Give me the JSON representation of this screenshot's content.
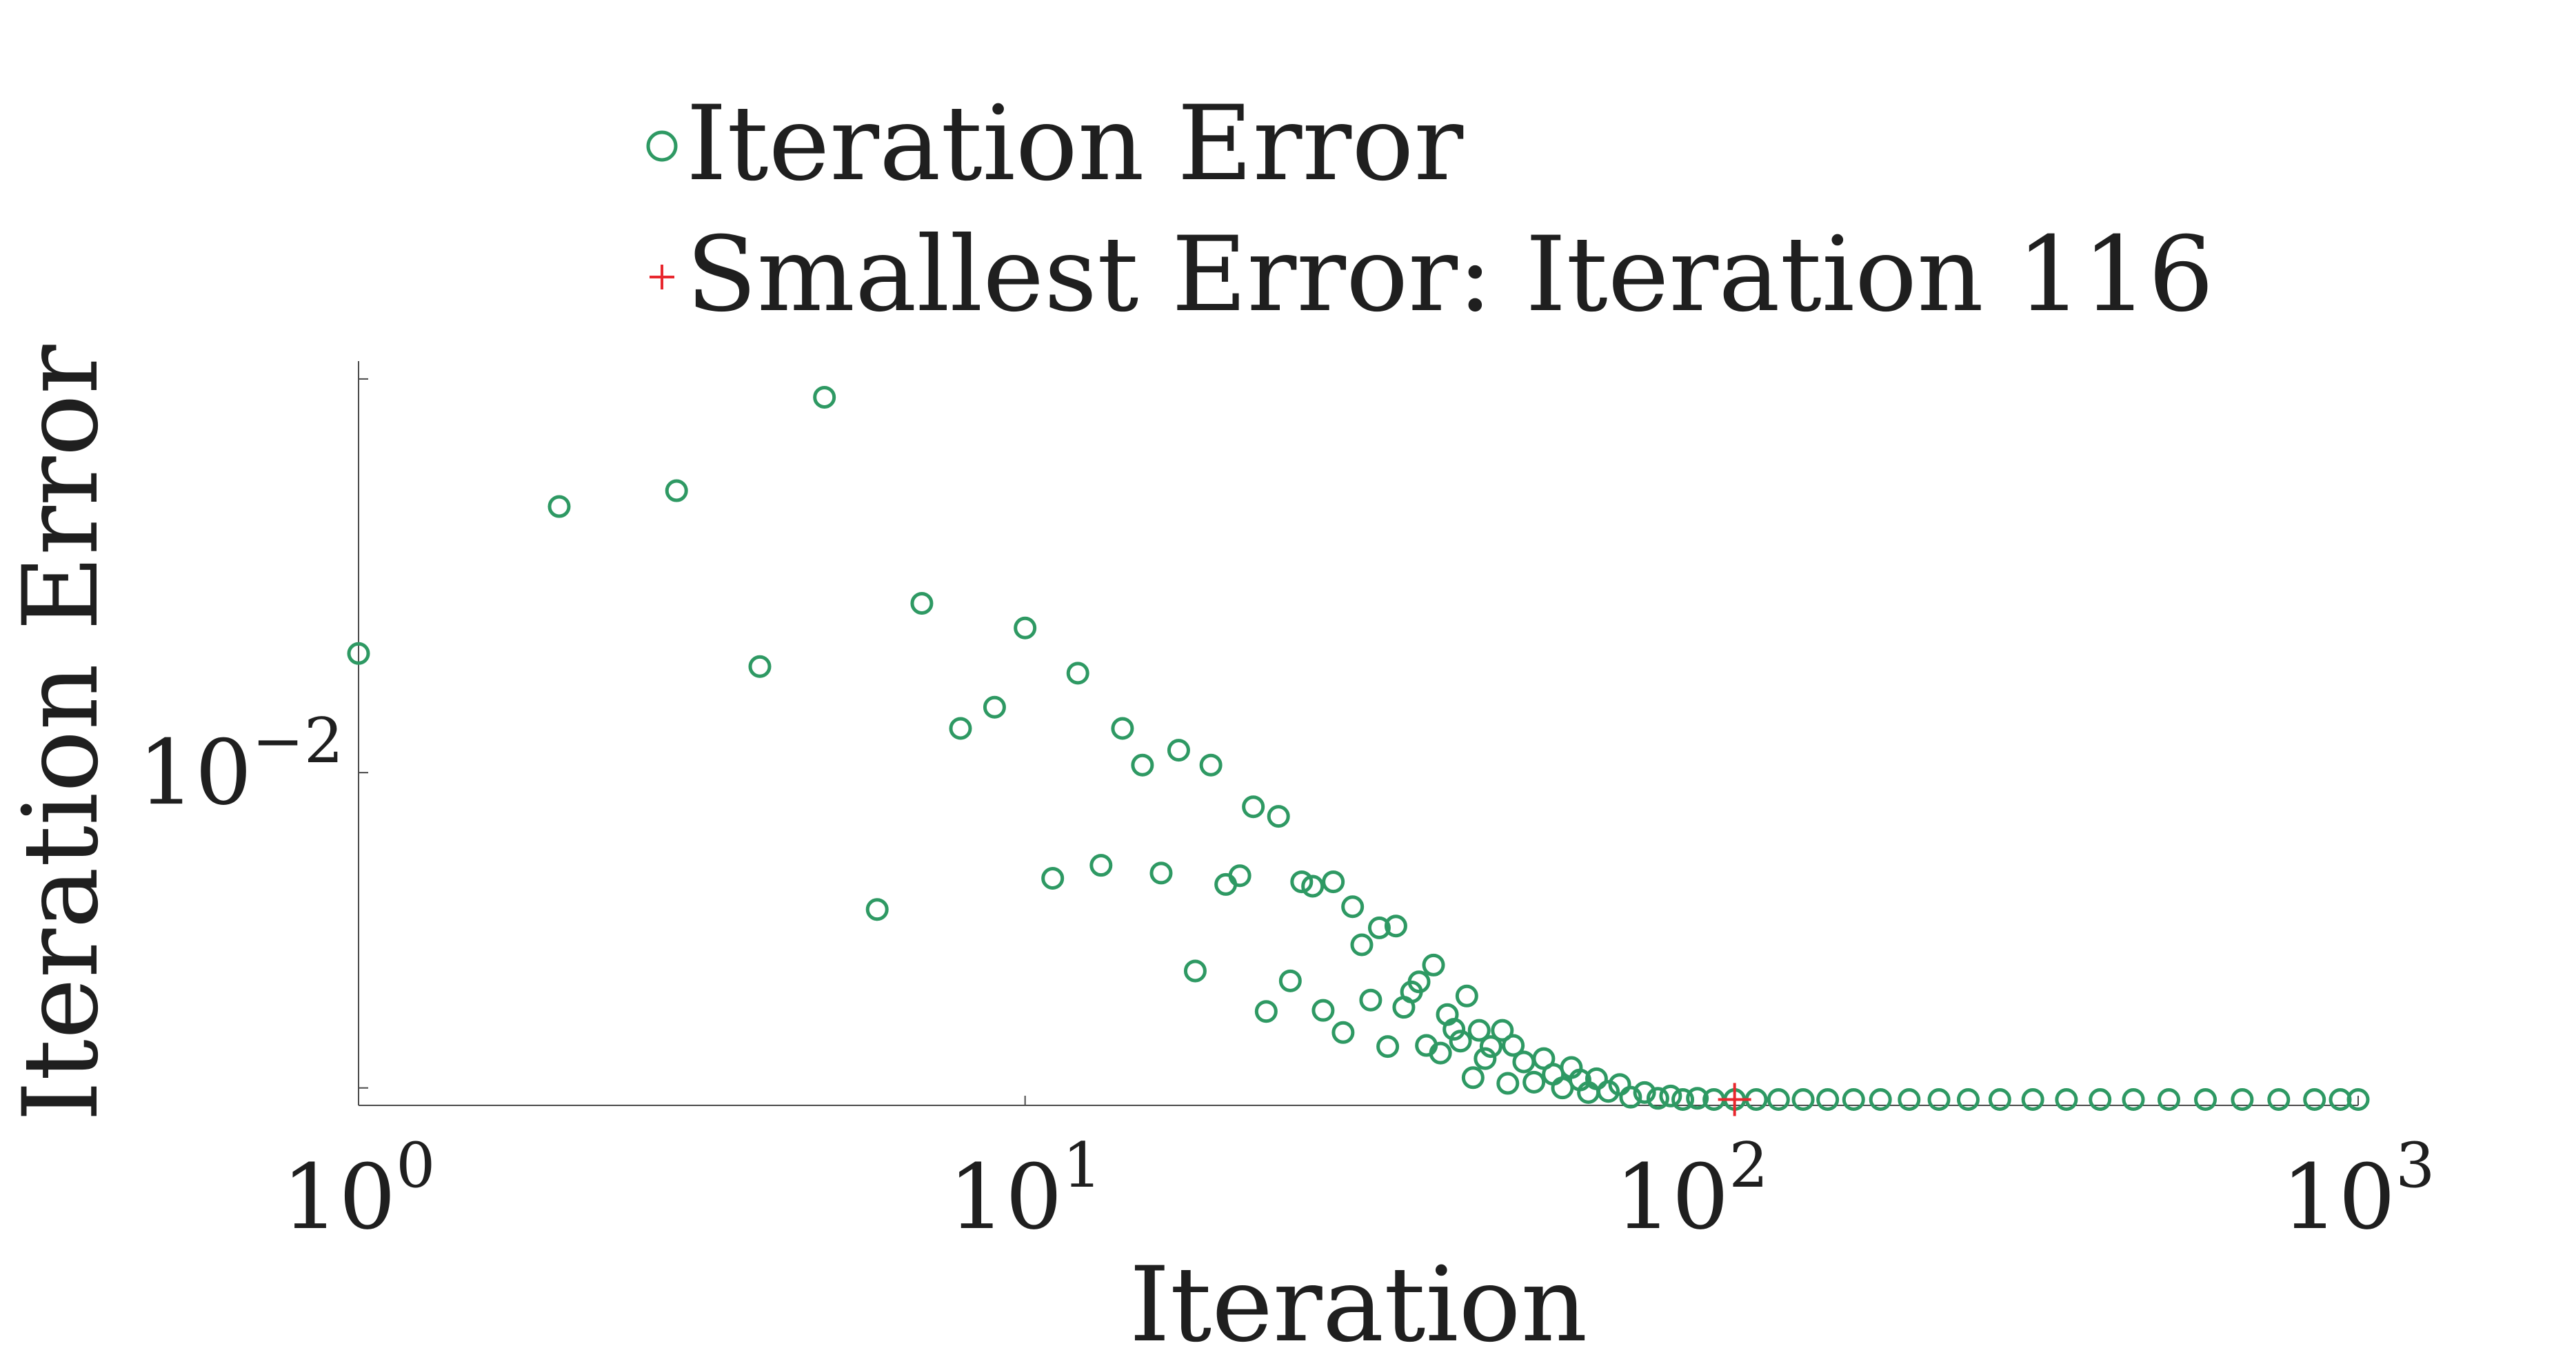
{
  "chart_data": {
    "type": "scatter",
    "xlabel": "Iteration",
    "ylabel": "Iteration Error",
    "xscale": "log",
    "yscale": "log",
    "xlim": [
      1,
      1000
    ],
    "ylim": [
      0.00645,
      0.0172
    ],
    "grid": false,
    "legend_position": "top",
    "x_ticks": [
      {
        "value": 1,
        "base": "10",
        "exp": "0"
      },
      {
        "value": 10,
        "base": "10",
        "exp": "1"
      },
      {
        "value": 100,
        "base": "10",
        "exp": "2"
      },
      {
        "value": 1000,
        "base": "10",
        "exp": "3"
      }
    ],
    "y_ticks": [
      {
        "value": 0.01,
        "base": "10",
        "exp": "−2"
      },
      {
        "value": 0.0168,
        "base": "",
        "exp": ""
      },
      {
        "value": 0.0066,
        "base": "",
        "exp": ""
      }
    ],
    "series": [
      {
        "name": "Iteration Error",
        "marker": "circle",
        "color": "#2e9963",
        "points": [
          [
            1,
            0.0117
          ],
          [
            2,
            0.0142
          ],
          [
            3,
            0.0145
          ],
          [
            4,
            0.0115
          ],
          [
            5,
            0.0164
          ],
          [
            6,
            0.00835
          ],
          [
            7,
            0.0125
          ],
          [
            8,
            0.0106
          ],
          [
            9,
            0.0109
          ],
          [
            10,
            0.0121
          ],
          [
            11,
            0.0087
          ],
          [
            12,
            0.0114
          ],
          [
            13,
            0.00885
          ],
          [
            14,
            0.0106
          ],
          [
            15,
            0.0101
          ],
          [
            16,
            0.00876
          ],
          [
            17,
            0.0103
          ],
          [
            18,
            0.0077
          ],
          [
            19,
            0.0101
          ],
          [
            20,
            0.00863
          ],
          [
            21,
            0.00873
          ],
          [
            22,
            0.00956
          ],
          [
            23,
            0.0073
          ],
          [
            24,
            0.00944
          ],
          [
            25,
            0.0076
          ],
          [
            26,
            0.00866
          ],
          [
            27,
            0.00861
          ],
          [
            28,
            0.00731
          ],
          [
            29,
            0.00866
          ],
          [
            30,
            0.0071
          ],
          [
            31,
            0.00838
          ],
          [
            32,
            0.00797
          ],
          [
            33,
            0.00741
          ],
          [
            34,
            0.00815
          ],
          [
            35,
            0.00697
          ],
          [
            36,
            0.00817
          ],
          [
            37,
            0.00734
          ],
          [
            38,
            0.00749
          ],
          [
            39,
            0.00759
          ],
          [
            40,
            0.00698
          ],
          [
            41,
            0.00776
          ],
          [
            42,
            0.00691
          ],
          [
            43,
            0.00727
          ],
          [
            44,
            0.00713
          ],
          [
            45,
            0.00702
          ],
          [
            46,
            0.00745
          ],
          [
            47,
            0.00669
          ],
          [
            48,
            0.00712
          ],
          [
            49,
            0.00686
          ],
          [
            50,
            0.00697
          ],
          [
            52,
            0.00712
          ],
          [
            53,
            0.00664
          ],
          [
            54,
            0.00698
          ],
          [
            56,
            0.00683
          ],
          [
            58,
            0.00665
          ],
          [
            60,
            0.00686
          ],
          [
            62,
            0.00672
          ],
          [
            64,
            0.0066
          ],
          [
            66,
            0.00678
          ],
          [
            68,
            0.00667
          ],
          [
            70,
            0.00656
          ],
          [
            72,
            0.00668
          ],
          [
            75,
            0.00657
          ],
          [
            78,
            0.00663
          ],
          [
            81,
            0.00652
          ],
          [
            85,
            0.00656
          ],
          [
            89,
            0.00651
          ],
          [
            93,
            0.00653
          ],
          [
            97,
            0.0065
          ],
          [
            102,
            0.00651
          ],
          [
            108,
            0.0065
          ],
          [
            116,
            0.0065
          ],
          [
            125,
            0.0065
          ],
          [
            135,
            0.0065
          ],
          [
            147,
            0.0065
          ],
          [
            160,
            0.0065
          ],
          [
            175,
            0.0065
          ],
          [
            192,
            0.0065
          ],
          [
            212,
            0.0065
          ],
          [
            235,
            0.0065
          ],
          [
            260,
            0.0065
          ],
          [
            290,
            0.0065
          ],
          [
            325,
            0.0065
          ],
          [
            365,
            0.0065
          ],
          [
            410,
            0.0065
          ],
          [
            460,
            0.0065
          ],
          [
            520,
            0.0065
          ],
          [
            590,
            0.0065
          ],
          [
            670,
            0.0065
          ],
          [
            760,
            0.0065
          ],
          [
            860,
            0.0065
          ],
          [
            940,
            0.0065
          ],
          [
            1000,
            0.0065
          ]
        ]
      },
      {
        "name": "Smallest Error: Iteration 116",
        "marker": "plus",
        "color": "#e8272e",
        "points": [
          [
            116,
            0.0065
          ]
        ]
      }
    ]
  }
}
